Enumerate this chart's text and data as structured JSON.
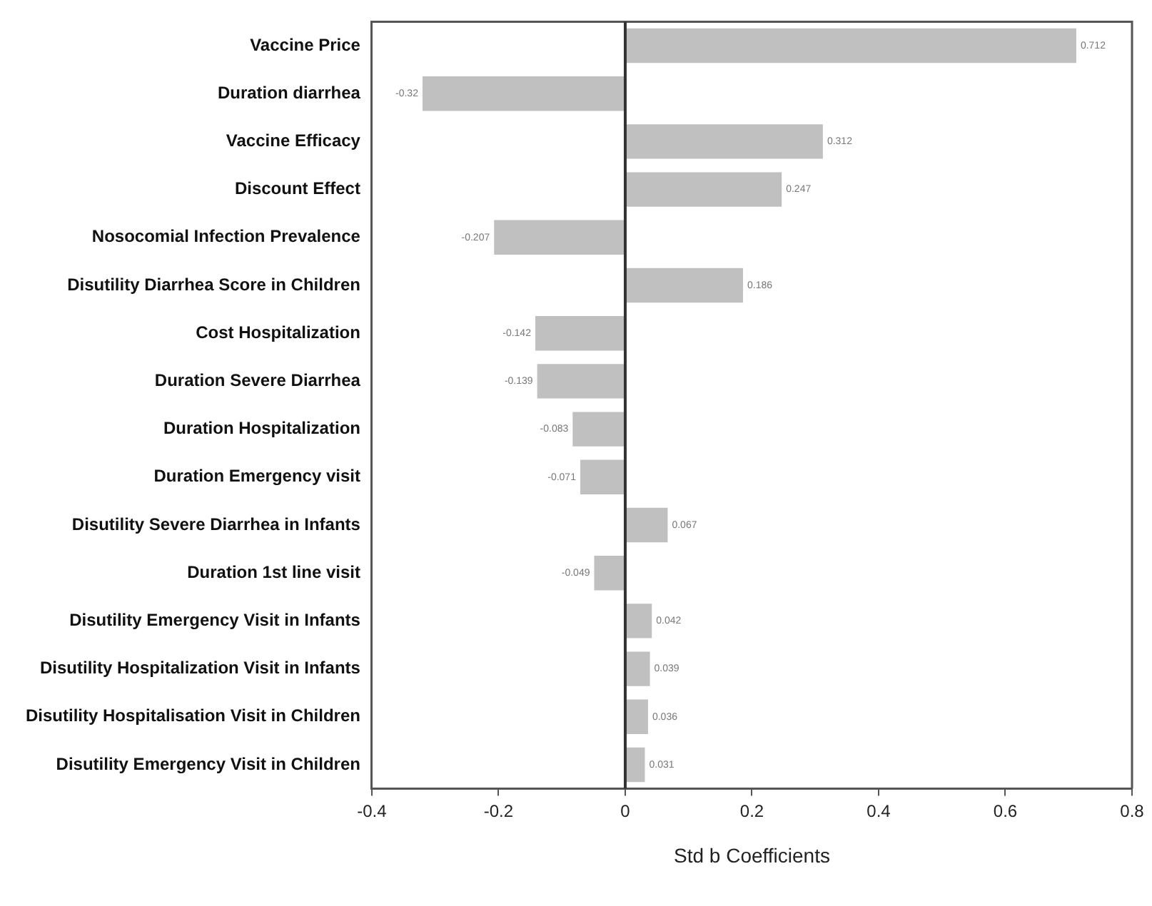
{
  "chart_data": {
    "type": "bar",
    "orientation": "horizontal",
    "xlabel": "Std b Coefficients",
    "categories": [
      "Vaccine Price",
      "Duration diarrhea",
      "Vaccine Efficacy",
      "Discount Effect",
      "Nosocomial Infection Prevalence",
      "Disutility Diarrhea Score in Children",
      "Cost Hospitalization",
      "Duration Severe Diarrhea",
      "Duration Hospitalization",
      "Duration Emergency visit",
      "Disutility Severe Diarrhea in Infants",
      "Duration 1st line visit",
      "Disutility Emergency Visit in Infants",
      "Disutility Hospitalization Visit in Infants",
      "Disutility Hospitalisation Visit in Children",
      "Disutility Emergency Visit in Children"
    ],
    "values": [
      0.712,
      -0.32,
      0.312,
      0.247,
      -0.207,
      0.186,
      -0.142,
      -0.139,
      -0.083,
      -0.071,
      0.067,
      -0.049,
      0.042,
      0.039,
      0.036,
      0.031
    ],
    "color": "#c0c0c0",
    "xlim": [
      -0.4,
      0.8
    ],
    "xticks": [
      -0.4,
      -0.2,
      0,
      0.2,
      0.4,
      0.6,
      0.8
    ],
    "ref_lines": [
      {
        "axis": "x",
        "value": 0,
        "color": "#333333"
      }
    ],
    "data_labels": true,
    "grid": false,
    "legend": false
  }
}
